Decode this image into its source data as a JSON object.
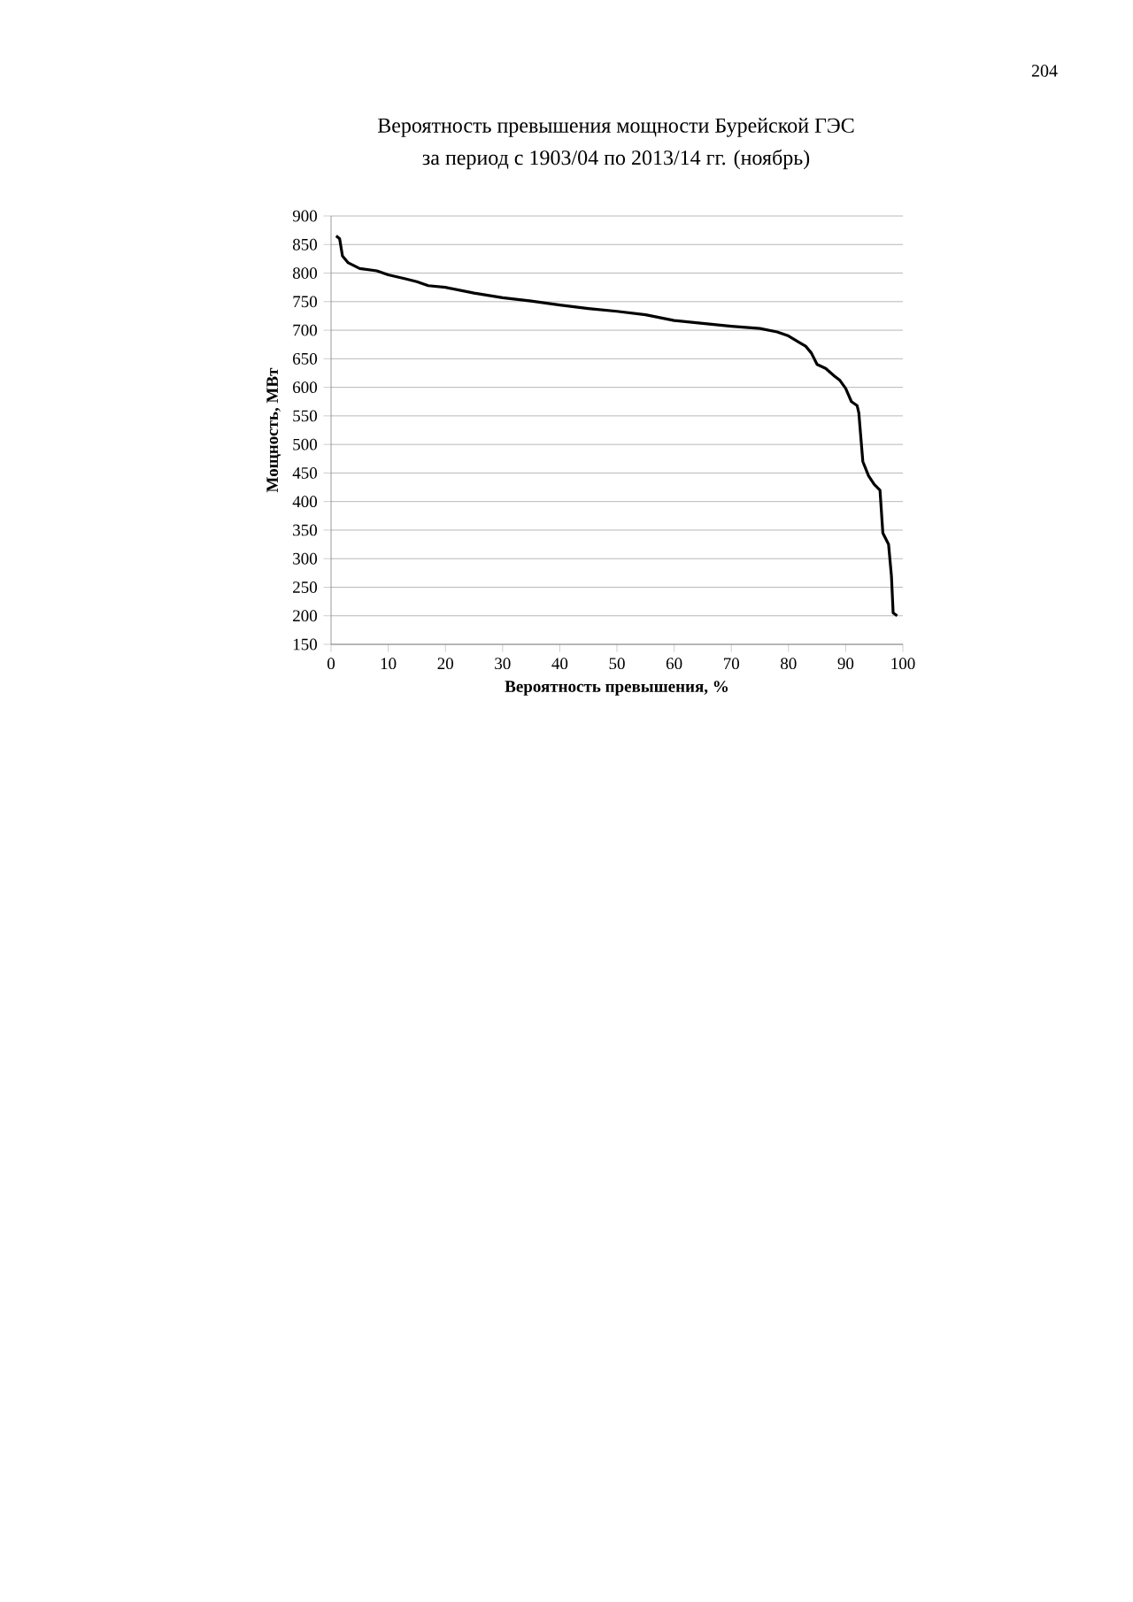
{
  "chart_data": {
    "type": "line",
    "title": "Вероятность превышения мощности Бурейской ГЭС",
    "subtitle": "за период с 1903/04 по 2013/14 гг. (ноябрь)",
    "xlabel": "Вероятность превышения, %",
    "ylabel": "Мощность, МВт",
    "annotations": [
      "204"
    ],
    "x": [
      0.9,
      1.5,
      2,
      3,
      5,
      8,
      10,
      13,
      15,
      17,
      20,
      25,
      30,
      35,
      40,
      45,
      50,
      55,
      60,
      65,
      70,
      75,
      78,
      80,
      82,
      83,
      84,
      85,
      86.5,
      88,
      89,
      90,
      91,
      92,
      92.3,
      93,
      94,
      95,
      96,
      96.5,
      97.5,
      98,
      98.3,
      99
    ],
    "values": [
      865,
      860,
      830,
      818,
      808,
      804,
      797,
      790,
      785,
      778,
      775,
      765,
      757,
      751,
      744,
      738,
      733,
      727,
      717,
      712,
      707,
      703,
      697,
      690,
      678,
      672,
      660,
      640,
      633,
      620,
      612,
      598,
      575,
      568,
      555,
      470,
      445,
      430,
      420,
      345,
      325,
      270,
      205,
      200
    ],
    "color": "#000000",
    "xlim": [
      0,
      100
    ],
    "ylim": [
      150,
      900
    ],
    "xticks": [
      0,
      10,
      20,
      30,
      40,
      50,
      60,
      70,
      80,
      90,
      100
    ],
    "yticks": [
      150,
      200,
      250,
      300,
      350,
      400,
      450,
      500,
      550,
      600,
      650,
      700,
      750,
      800,
      850,
      900
    ],
    "grid": "y"
  }
}
